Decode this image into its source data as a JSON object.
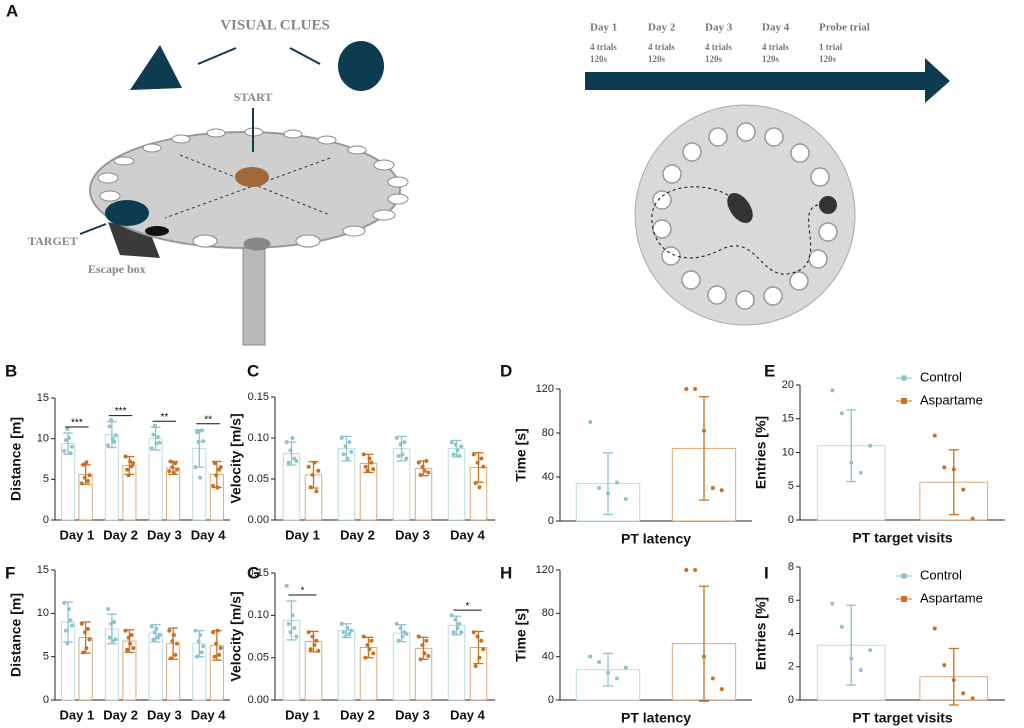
{
  "panel_a": {
    "panel": "A",
    "visual_clues": "VISUAL CLUES",
    "start": "START",
    "target": "TARGET",
    "escape_box": "Escape box",
    "timeline": [
      {
        "day": "Day 1",
        "trials": "4 trials",
        "time": "120s"
      },
      {
        "day": "Day 2",
        "trials": "4 trials",
        "time": "120s"
      },
      {
        "day": "Day 3",
        "trials": "4 trials",
        "time": "120s"
      },
      {
        "day": "Day 4",
        "trials": "4 trials",
        "time": "120s"
      },
      {
        "day": "Probe trial",
        "trials": "1 trial",
        "time": "120s"
      }
    ]
  },
  "chart_data": [
    {
      "type": "bar",
      "panel": "B",
      "ylabel": "Distance [m]",
      "categories": [
        "Day 1",
        "Day 2",
        "Day 3",
        "Day 4"
      ],
      "ylim": [
        0,
        15
      ],
      "yticks": [
        0,
        5,
        10,
        15
      ],
      "significance": [
        "***",
        "***",
        "**",
        "**"
      ],
      "series": [
        {
          "color": "#8fc3cf",
          "values": [
            9.4,
            10.5,
            10.0,
            8.8
          ],
          "errors": [
            1.3,
            1.6,
            1.4,
            2.3
          ],
          "points": [
            [
              8.5,
              9.8,
              11.2,
              10.1,
              8.2,
              9.0
            ],
            [
              9.2,
              11.5,
              12.3,
              10.0,
              9.6,
              10.4
            ],
            [
              8.8,
              10.5,
              11.6,
              9.4,
              10.2,
              9.5
            ],
            [
              6.5,
              10.8,
              9.6,
              5.2,
              11.0,
              9.7
            ]
          ]
        },
        {
          "color": "#c8711f",
          "values": [
            5.6,
            6.7,
            6.4,
            5.6
          ],
          "errors": [
            1.2,
            1.1,
            0.8,
            1.6
          ],
          "points": [
            [
              4.5,
              6.8,
              5.2,
              7.1,
              4.8,
              5.5
            ],
            [
              7.8,
              6.2,
              5.5,
              7.2,
              6.6,
              7.0
            ],
            [
              6.0,
              7.2,
              6.5,
              5.8,
              7.0,
              6.2
            ],
            [
              4.2,
              7.0,
              5.5,
              4.0,
              6.2,
              6.5
            ]
          ]
        }
      ]
    },
    {
      "type": "bar",
      "panel": "C",
      "ylabel": "Velocity [m/s]",
      "categories": [
        "Day 1",
        "Day 2",
        "Day 3",
        "Day 4"
      ],
      "ylim": [
        0,
        0.15
      ],
      "yticks": [
        {
          "value": 0,
          "label": "0.00"
        },
        {
          "value": 0.05,
          "label": "0.05"
        },
        {
          "value": 0.1,
          "label": "0.10"
        },
        {
          "value": 0.15,
          "label": "0.15"
        }
      ],
      "series": [
        {
          "color": "#8fc3cf",
          "values": [
            0.081,
            0.087,
            0.087,
            0.087
          ],
          "errors": [
            0.014,
            0.015,
            0.015,
            0.01
          ],
          "points": [
            [
              0.095,
              0.07,
              0.085,
              0.1,
              0.075,
              0.072
            ],
            [
              0.1,
              0.08,
              0.09,
              0.075,
              0.095,
              0.083
            ],
            [
              0.1,
              0.078,
              0.092,
              0.08,
              0.095,
              0.075
            ],
            [
              0.095,
              0.08,
              0.092,
              0.085,
              0.078,
              0.09
            ]
          ]
        },
        {
          "color": "#c8711f",
          "values": [
            0.055,
            0.069,
            0.063,
            0.064
          ],
          "errors": [
            0.016,
            0.011,
            0.009,
            0.018
          ],
          "points": [
            [
              0.065,
              0.04,
              0.055,
              0.07,
              0.035,
              0.06
            ],
            [
              0.08,
              0.065,
              0.06,
              0.075,
              0.07,
              0.062
            ],
            [
              0.07,
              0.055,
              0.065,
              0.06,
              0.072,
              0.058
            ],
            [
              0.08,
              0.045,
              0.07,
              0.04,
              0.075,
              0.065
            ]
          ]
        }
      ]
    },
    {
      "type": "bar",
      "panel": "D",
      "ylabel": "Time  [s]",
      "xlabel": "PT latency",
      "categories": [
        null
      ],
      "ylim": [
        0,
        120
      ],
      "yticks": [
        0,
        40,
        80,
        120
      ],
      "series": [
        {
          "color": "#8fc3cf",
          "values": [
            34
          ],
          "errors": [
            28
          ],
          "points": [
            [
              90,
              30,
              25,
              35,
              20
            ]
          ]
        },
        {
          "color": "#c8711f",
          "values": [
            66
          ],
          "errors": [
            47
          ],
          "points": [
            [
              120,
              120,
              82,
              30,
              28
            ]
          ]
        }
      ]
    },
    {
      "type": "bar",
      "panel": "E",
      "ylabel": "Entries [%]",
      "xlabel": "PT target visits",
      "categories": [
        null
      ],
      "ylim": [
        0,
        20
      ],
      "yticks": [
        0,
        5,
        10,
        15,
        20
      ],
      "series": [
        {
          "name": "Control",
          "color": "#8fc3cf",
          "values": [
            11
          ],
          "errors": [
            5.3
          ],
          "points": [
            [
              19.2,
              15.8,
              8.5,
              7.0,
              11.0
            ]
          ]
        },
        {
          "name": "Aspartame",
          "color": "#c8711f",
          "values": [
            5.6
          ],
          "errors": [
            4.8
          ],
          "points": [
            [
              12.5,
              7.8,
              7.5,
              4.5,
              0.2
            ]
          ]
        }
      ]
    },
    {
      "type": "bar",
      "panel": "F",
      "ylabel": "Distance  [m]",
      "categories": [
        "Day 1",
        "Day 2",
        "Day 3",
        "Day 4"
      ],
      "ylim": [
        0,
        15
      ],
      "yticks": [
        0,
        5,
        10,
        15
      ],
      "series": [
        {
          "color": "#8fc3cf",
          "values": [
            9.0,
            8.2,
            7.7,
            6.5
          ],
          "errors": [
            2.3,
            1.7,
            1.0,
            1.5
          ],
          "points": [
            [
              11.2,
              8.0,
              6.5,
              10.5,
              9.2,
              8.6
            ],
            [
              10.5,
              7.2,
              8.8,
              6.8,
              9.0,
              7.0
            ],
            [
              8.5,
              7.0,
              7.8,
              8.2,
              7.2,
              7.5
            ],
            [
              8.0,
              5.0,
              6.8,
              7.5,
              5.5,
              6.2
            ]
          ]
        },
        {
          "color": "#c8711f",
          "values": [
            7.2,
            6.8,
            6.5,
            6.3
          ],
          "errors": [
            1.8,
            1.3,
            1.8,
            1.7
          ],
          "points": [
            [
              8.8,
              5.5,
              7.8,
              6.0,
              8.2,
              7.0
            ],
            [
              8.0,
              5.8,
              7.2,
              6.5,
              7.5,
              6.0
            ],
            [
              8.0,
              4.8,
              6.8,
              7.5,
              5.2,
              6.5
            ],
            [
              7.8,
              5.0,
              6.5,
              8.0,
              5.2,
              6.0
            ]
          ]
        }
      ]
    },
    {
      "type": "bar",
      "panel": "G",
      "ylabel": "Velocity [m/s]",
      "categories": [
        "Day 1",
        "Day 2",
        "Day 3",
        "Day 4"
      ],
      "ylim": [
        0,
        0.15
      ],
      "yticks": [
        {
          "value": 0,
          "label": "0.00"
        },
        {
          "value": 0.05,
          "label": "0.05"
        },
        {
          "value": 0.1,
          "label": "0.10"
        },
        {
          "value": 0.15,
          "label": "0.15"
        }
      ],
      "significance": [
        "*",
        null,
        null,
        "*"
      ],
      "series": [
        {
          "color": "#8fc3cf",
          "values": [
            0.094,
            0.082,
            0.079,
            0.088
          ],
          "errors": [
            0.023,
            0.008,
            0.01,
            0.011
          ],
          "points": [
            [
              0.135,
              0.09,
              0.08,
              0.1,
              0.085,
              0.075
            ],
            [
              0.09,
              0.08,
              0.075,
              0.085,
              0.078,
              0.082
            ],
            [
              0.09,
              0.07,
              0.085,
              0.075,
              0.08,
              0.078
            ],
            [
              0.1,
              0.08,
              0.095,
              0.085,
              0.09,
              0.08
            ]
          ]
        },
        {
          "color": "#c8711f",
          "values": [
            0.069,
            0.062,
            0.061,
            0.062
          ],
          "errors": [
            0.012,
            0.012,
            0.013,
            0.019
          ],
          "points": [
            [
              0.08,
              0.06,
              0.075,
              0.065,
              0.07,
              0.058
            ],
            [
              0.075,
              0.05,
              0.065,
              0.06,
              0.07,
              0.055
            ],
            [
              0.075,
              0.048,
              0.065,
              0.055,
              0.07,
              0.052
            ],
            [
              0.08,
              0.04,
              0.075,
              0.05,
              0.07,
              0.06
            ]
          ]
        }
      ]
    },
    {
      "type": "bar",
      "panel": "H",
      "ylabel": "Time  [s]",
      "xlabel": "PT latency",
      "categories": [
        null
      ],
      "ylim": [
        0,
        120
      ],
      "yticks": [
        0,
        40,
        80,
        120
      ],
      "series": [
        {
          "color": "#8fc3cf",
          "values": [
            28
          ],
          "errors": [
            15
          ],
          "points": [
            [
              40,
              35,
              25,
              20,
              30
            ]
          ]
        },
        {
          "color": "#c8711f",
          "values": [
            52
          ],
          "errors": [
            53
          ],
          "points": [
            [
              120,
              120,
              40,
              20,
              10
            ]
          ]
        }
      ]
    },
    {
      "type": "bar",
      "panel": "I",
      "ylabel": "Entries  [%]",
      "xlabel": "PT target visits",
      "categories": [
        null
      ],
      "ylim": [
        0,
        8
      ],
      "yticks": [
        0,
        2,
        4,
        6,
        8
      ],
      "series": [
        {
          "name": "Control",
          "color": "#8fc3cf",
          "values": [
            3.3
          ],
          "errors": [
            2.4
          ],
          "points": [
            [
              5.8,
              4.4,
              2.5,
              1.8,
              3.0
            ]
          ]
        },
        {
          "name": "Aspartame",
          "color": "#c8711f",
          "values": [
            1.4
          ],
          "errors": [
            1.7
          ],
          "points": [
            [
              4.3,
              2.1,
              1.2,
              0.4,
              0.1
            ]
          ]
        }
      ]
    }
  ]
}
